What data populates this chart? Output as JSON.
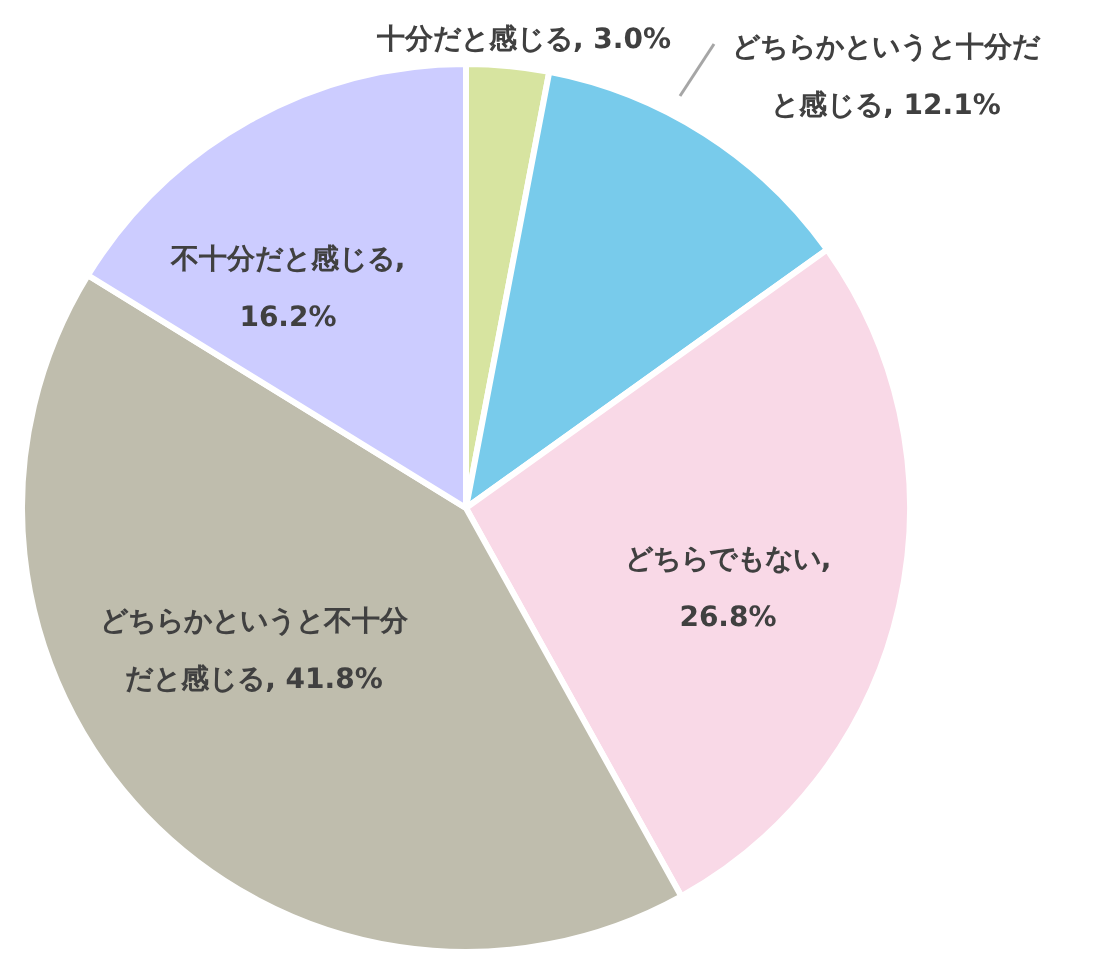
{
  "chart_data": {
    "type": "pie",
    "categories": [
      "十分だと感じる",
      "どちらかというと十分だと感じる",
      "どちらでもない",
      "どちらかというと不十分だと感じる",
      "不十分だと感じる"
    ],
    "values": [
      3.0,
      12.1,
      26.8,
      41.8,
      16.2
    ],
    "value_labels": [
      ", 3.0%",
      ", 12.1%",
      ", 26.8%",
      ", 41.8%",
      ", 16.2%"
    ],
    "colors": [
      "#d7e4a0",
      "#78cbeb",
      "#f9d9e7",
      "#bfbdad",
      "#ccccff"
    ]
  }
}
